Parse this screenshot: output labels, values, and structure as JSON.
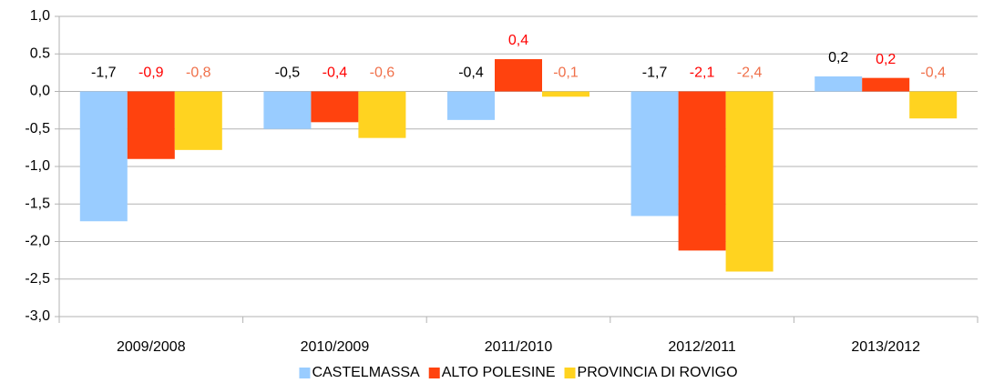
{
  "chart_data": {
    "type": "bar",
    "categories": [
      "2009/2008",
      "2010/2009",
      "2011/2010",
      "2012/2011",
      "2013/2012"
    ],
    "series": [
      {
        "name": "CASTELMASSA",
        "color": "#99ccff",
        "label_color": "#000000",
        "values": [
          -1.73,
          -0.5,
          -0.38,
          -1.66,
          0.2
        ],
        "value_labels": [
          "-1,7",
          "-0,5",
          "-0,4",
          "-1,7",
          "0,2"
        ]
      },
      {
        "name": "ALTO POLESINE",
        "color": "#ff420e",
        "label_color": "#ff0000",
        "values": [
          -0.9,
          -0.41,
          0.43,
          -2.12,
          0.18
        ],
        "value_labels": [
          "-0,9",
          "-0,4",
          "0,4",
          "-2,1",
          "0,2"
        ]
      },
      {
        "name": "PROVINCIA DI ROVIGO",
        "color": "#ffd320",
        "label_color": "#f0704a",
        "values": [
          -0.78,
          -0.62,
          -0.07,
          -2.4,
          -0.36
        ],
        "value_labels": [
          "-0,8",
          "-0,6",
          "-0,1",
          "-2,4",
          "-0,4"
        ]
      }
    ],
    "ylim": [
      -3,
      1
    ],
    "yticks": [
      {
        "value": -3,
        "label": "-3,0"
      },
      {
        "value": -2.5,
        "label": "-2,5"
      },
      {
        "value": -2,
        "label": "-2,0"
      },
      {
        "value": -1.5,
        "label": "-1,5"
      },
      {
        "value": -1,
        "label": "-1,0"
      },
      {
        "value": -0.5,
        "label": "-0,5"
      },
      {
        "value": 0,
        "label": "0,0"
      },
      {
        "value": 0.5,
        "label": "0.5"
      },
      {
        "value": 1,
        "label": "1,0"
      }
    ],
    "grid": true,
    "legend": "bottom"
  }
}
